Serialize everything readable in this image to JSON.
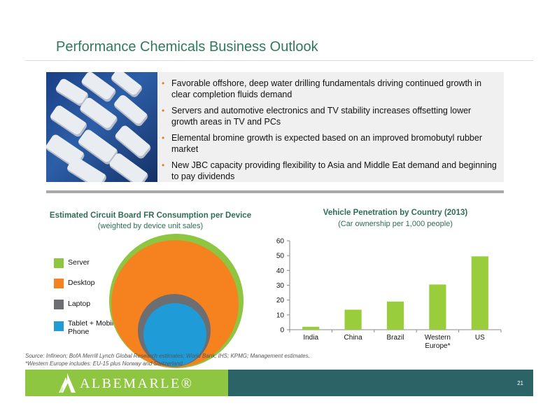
{
  "title": "Performance Chemicals Business Outlook",
  "bullets": [
    "Favorable offshore, deep water drilling fundamentals driving continued growth in clear completion fluids demand",
    "Servers and automotive electronics and TV stability increases offsetting lower growth areas in TV and PCs",
    "Elemental bromine growth is expected based on an improved bromobutyl rubber market",
    "New JBC capacity providing flexibility to Asia and Middle Eat demand and beginning to pay dividends"
  ],
  "colors": {
    "title": "#2e7a5b",
    "bullet_dot": "#e2801f",
    "server": "#8ec641",
    "desktop": "#f5821f",
    "laptop": "#6d6e71",
    "tablet": "#1f9bd7",
    "bar": "#9acd3c",
    "footer_green": "#8ec641",
    "footer_teal": "#2b6366"
  },
  "left_chart": {
    "title": "Estimated Circuit Board FR Consumption per Device",
    "subtitle": "(weighted by device unit sales)",
    "legend": [
      {
        "label": "Server",
        "color": "#8ec641"
      },
      {
        "label": "Desktop",
        "color": "#f5821f"
      },
      {
        "label": "Laptop",
        "color": "#6d6e71"
      },
      {
        "label": "Tablet + Mobile Phone",
        "color": "#1f9bd7"
      }
    ]
  },
  "chart_data": {
    "type": "bar",
    "title": "Vehicle Penetration by Country (2013)",
    "subtitle": "(Car ownership per 1,000 people)",
    "categories": [
      "India",
      "China",
      "Brazil",
      "Western Europe*",
      "US"
    ],
    "values": [
      2,
      13.5,
      19,
      30.5,
      49.5
    ],
    "ylim": [
      0,
      60
    ],
    "yticks": [
      0,
      10,
      20,
      30,
      40,
      50,
      60
    ],
    "xlabel": "",
    "ylabel": "",
    "grid": false
  },
  "source": {
    "line1": "Source:  Infineon; BofA Merrill Lynch Global Research estimates; World Bank; IHS; KPMG; Management estimates.",
    "line2": "*Western Europe includes: EU-15 plus Norway and Switzerland."
  },
  "footer": {
    "logo_text": "ALBEMARLE®",
    "page_number": "21"
  }
}
